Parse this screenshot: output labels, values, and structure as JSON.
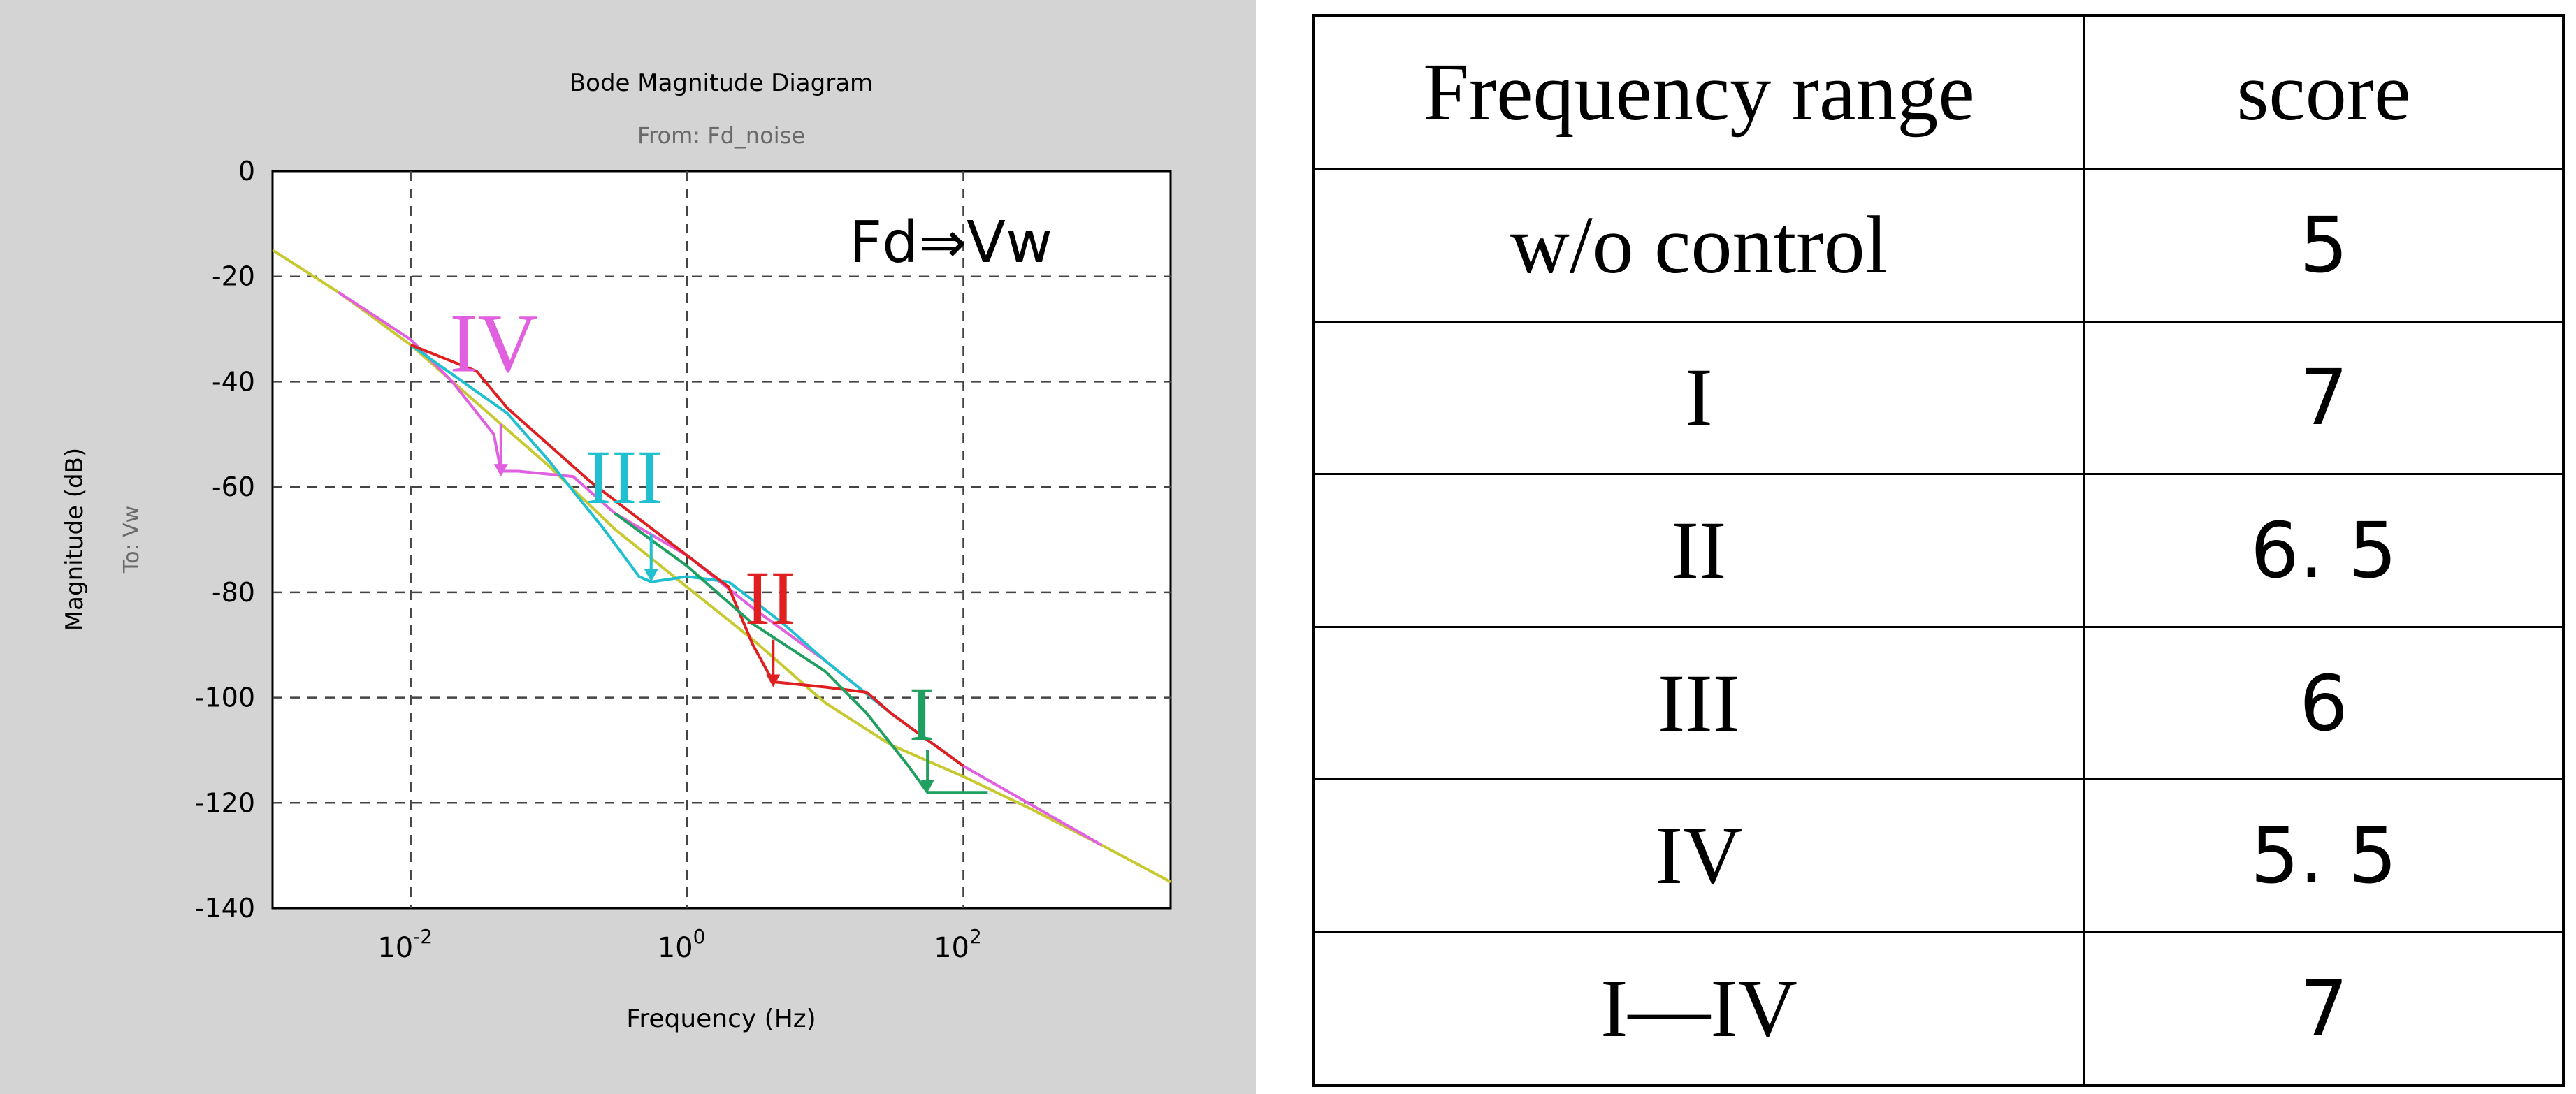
{
  "chart_data": {
    "type": "line",
    "title": "Bode Magnitude Diagram",
    "subtitle": "From: Fd_noise",
    "xlabel": "Frequency (Hz)",
    "ylabel": "Magnitude (dB)",
    "ylabel2": "To: Vw",
    "annotation": "Fd⇒Vw",
    "x_scale": "log",
    "xlim": [
      0.001,
      3162
    ],
    "ylim": [
      -140,
      0
    ],
    "grid": true,
    "y_ticks": [
      0,
      -20,
      -40,
      -60,
      -80,
      -100,
      -120,
      -140
    ],
    "y_tick_labels": [
      "0",
      "-20",
      "-40",
      "-60",
      "-80",
      "-100",
      "-120",
      "-140"
    ],
    "x_ticks": [
      0.01,
      1,
      100
    ],
    "x_tick_labels": [
      {
        "base": "10",
        "exp": "-2"
      },
      {
        "base": "10",
        "exp": "0"
      },
      {
        "base": "10",
        "exp": "2"
      }
    ],
    "series": [
      {
        "label": "",
        "color": "#c8c830",
        "x": [
          0.001,
          0.003,
          0.01,
          0.03,
          0.1,
          0.3,
          1,
          3,
          10,
          30,
          100,
          300,
          1000,
          3162
        ],
        "y": [
          -15,
          -23,
          -33,
          -44,
          -56,
          -68,
          -79,
          -89,
          -101,
          -109,
          -115,
          -121,
          -128,
          -135
        ]
      },
      {
        "label": "IV",
        "color": "#e060e0",
        "x": [
          0.003,
          0.01,
          0.02,
          0.04,
          0.045,
          0.06,
          0.15,
          0.3,
          1,
          3,
          10,
          30,
          100,
          1000
        ],
        "y": [
          -23,
          -32,
          -40,
          -50,
          -57,
          -57,
          -58,
          -65,
          -73,
          -83,
          -93,
          -103,
          -113,
          -128
        ]
      },
      {
        "label": "III",
        "color": "#20c0d0",
        "x": [
          0.01,
          0.05,
          0.1,
          0.25,
          0.45,
          0.55,
          1,
          2,
          5,
          10,
          30,
          100
        ],
        "y": [
          -33,
          -46,
          -55,
          -68,
          -77,
          -78,
          -77,
          -78,
          -86,
          -93,
          -103,
          -113
        ]
      },
      {
        "label": "II",
        "color": "#e02020",
        "x": [
          0.01,
          0.03,
          0.05,
          0.2,
          0.5,
          1,
          2,
          3,
          4.2,
          10,
          20,
          30,
          100
        ],
        "y": [
          -33,
          -38,
          -45,
          -59,
          -67,
          -73,
          -79,
          -90,
          -97,
          -98,
          -99,
          -103,
          -113
        ]
      },
      {
        "label": "I",
        "color": "#20a060",
        "x": [
          0.3,
          1,
          3,
          10,
          20,
          40,
          55,
          150
        ],
        "y": [
          -65,
          -75,
          -86,
          -95,
          -103,
          -113,
          -118,
          -118
        ]
      }
    ],
    "labels": [
      {
        "text": "IV",
        "color": "#e060e0"
      },
      {
        "text": "III",
        "color": "#20c0d0"
      },
      {
        "text": "II",
        "color": "#e02020"
      },
      {
        "text": "I",
        "color": "#20a060"
      }
    ]
  },
  "table": {
    "headers": [
      "Frequency range",
      "score"
    ],
    "rows": [
      {
        "range": "w/o control",
        "score": "5"
      },
      {
        "range": "I",
        "score": "7"
      },
      {
        "range": "II",
        "score": "6. 5"
      },
      {
        "range": "III",
        "score": "6"
      },
      {
        "range": "IV",
        "score": "5. 5"
      },
      {
        "range": "I—IV",
        "score": "7"
      }
    ]
  }
}
